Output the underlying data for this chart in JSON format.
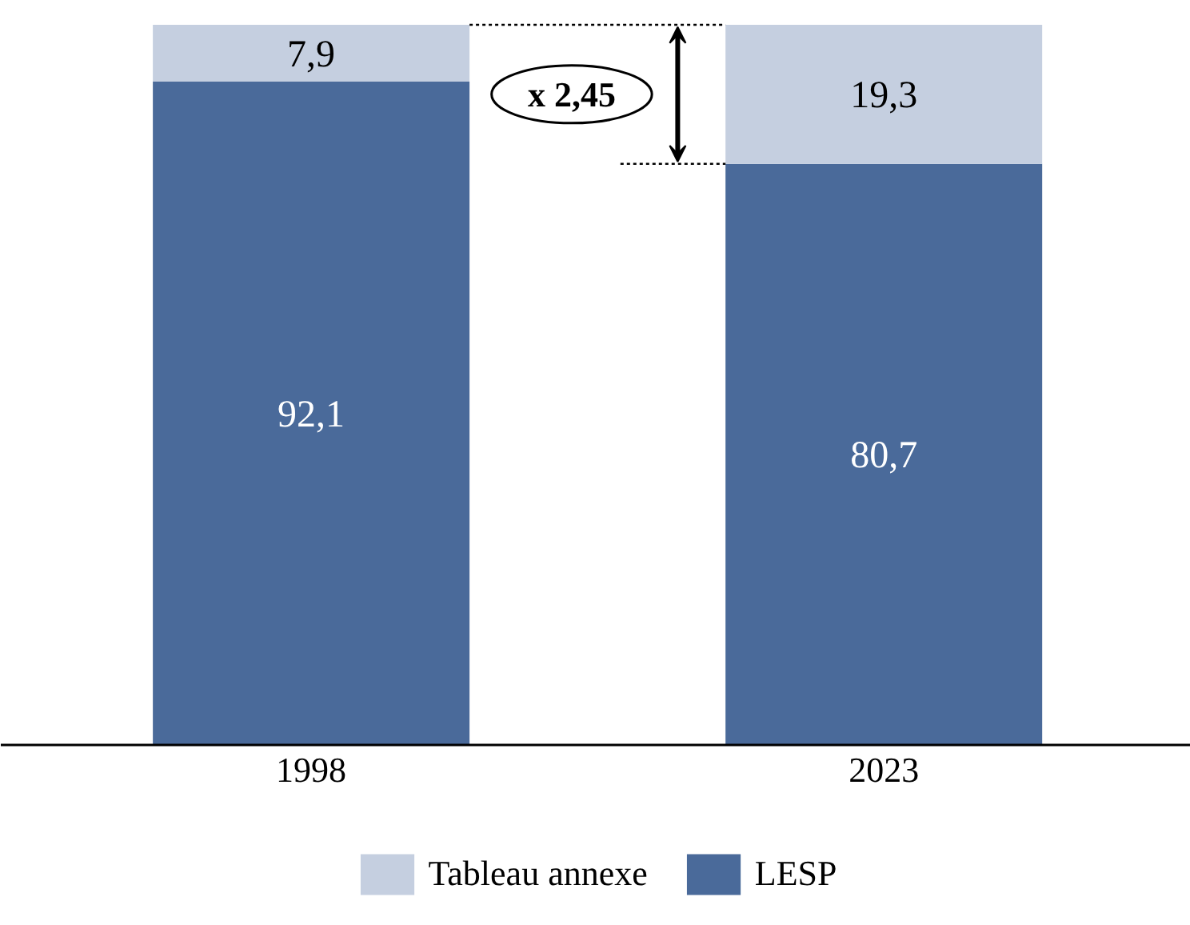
{
  "chart_data": {
    "type": "bar",
    "stacked": true,
    "categories": [
      "1998",
      "2023"
    ],
    "series": [
      {
        "name": "LESP",
        "color": "#4a6a9a",
        "values": [
          92.1,
          80.7
        ],
        "value_labels": [
          "92,1",
          "80,7"
        ]
      },
      {
        "name": "Tableau annexe",
        "color": "#c5cfe0",
        "values": [
          7.9,
          19.3
        ],
        "value_labels": [
          "7,9",
          "19,3"
        ]
      }
    ],
    "ref_lines": [
      {
        "axis": "y",
        "value": 100,
        "line_style": "dotted",
        "color": "#000000"
      },
      {
        "axis": "y",
        "value": 80.7,
        "line_style": "dotted",
        "color": "#000000"
      }
    ],
    "legend": "bottom",
    "grid": false,
    "annotations": [
      "x 2,45"
    ]
  }
}
